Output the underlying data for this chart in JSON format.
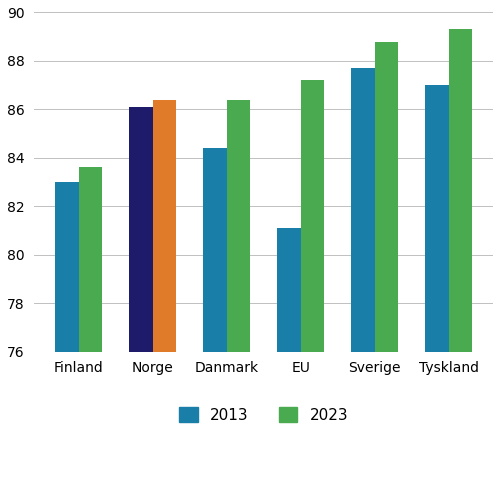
{
  "categories": [
    "Finland",
    "Norge",
    "Danmark",
    "EU",
    "Sverige",
    "Tyskland"
  ],
  "values_2013": [
    83.0,
    86.1,
    84.4,
    81.1,
    87.7,
    87.0
  ],
  "values_2023": [
    83.6,
    86.4,
    86.4,
    87.2,
    88.8,
    89.3
  ],
  "color_2013_default": "#1a7fa8",
  "color_2013_norge": "#1e1b6b",
  "color_2023_default": "#4aaa4f",
  "color_2023_norge": "#e07b2a",
  "ylim": [
    76,
    90
  ],
  "yticks": [
    76,
    78,
    80,
    82,
    84,
    86,
    88,
    90
  ],
  "legend_2013": "2013",
  "legend_2023": "2023",
  "legend_color_2013": "#1a7fa8",
  "legend_color_2023": "#4aaa4f",
  "bar_width": 0.32,
  "background_color": "#ffffff",
  "grid_color": "#c0c0c0"
}
